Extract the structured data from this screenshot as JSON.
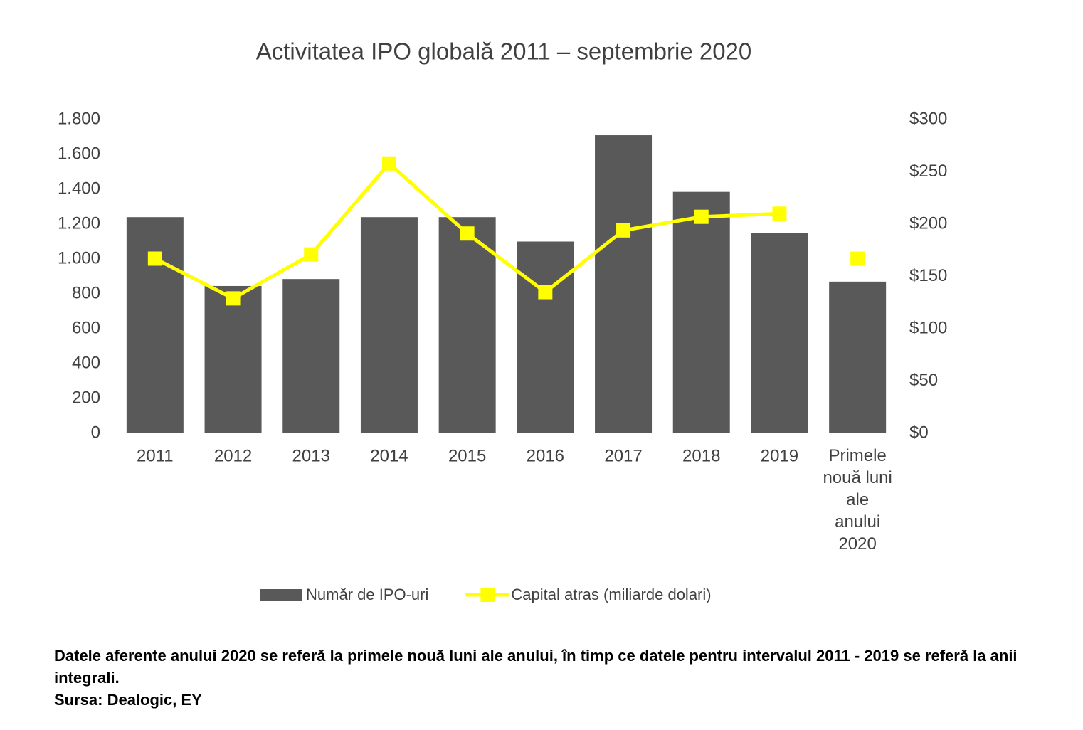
{
  "chart_data": {
    "type": "bar_line",
    "title": "Activitatea IPO globală 2011 – septembrie 2020",
    "categories": [
      "2011",
      "2012",
      "2013",
      "2014",
      "2015",
      "2016",
      "2017",
      "2018",
      "2019",
      "Primele nouă luni ale anului 2020"
    ],
    "series": [
      {
        "name": "Număr de IPO-uri",
        "type": "bar",
        "color": "#595959",
        "values": [
          1240,
          845,
          885,
          1240,
          1240,
          1100,
          1710,
          1385,
          1150,
          870
        ]
      },
      {
        "name": "Capital atras (miliarde dolari)",
        "type": "line",
        "axis": "y2",
        "color": "#ffff00",
        "connect_last": false,
        "values": [
          167,
          129,
          171,
          258,
          191,
          135,
          194,
          207,
          210,
          167
        ]
      }
    ],
    "ylim": [
      0,
      1800
    ],
    "yticks": [
      0,
      200,
      400,
      600,
      800,
      {
        "value": 1000,
        "label": "1.000"
      },
      {
        "value": 1200,
        "label": "1.200"
      },
      {
        "value": 1400,
        "label": "1.400"
      },
      {
        "value": 1600,
        "label": "1.600"
      },
      {
        "value": 1800,
        "label": "1.800"
      }
    ],
    "y2lim": [
      0,
      300
    ],
    "y2ticks": [
      {
        "value": 0,
        "label": "$0"
      },
      {
        "value": 50,
        "label": "$50"
      },
      {
        "value": 100,
        "label": "$100"
      },
      {
        "value": 150,
        "label": "$150"
      },
      {
        "value": 200,
        "label": "$200"
      },
      {
        "value": 250,
        "label": "$250"
      },
      {
        "value": 300,
        "label": "$300"
      }
    ],
    "grid": false,
    "legend": "bottom"
  },
  "notes": {
    "text": "Datele aferente anului 2020 se referă la primele nouă luni ale anului, în timp ce datele pentru intervalul 2011 - 2019 se referă la anii integrali.",
    "source": "Sursa: Dealogic, EY"
  }
}
